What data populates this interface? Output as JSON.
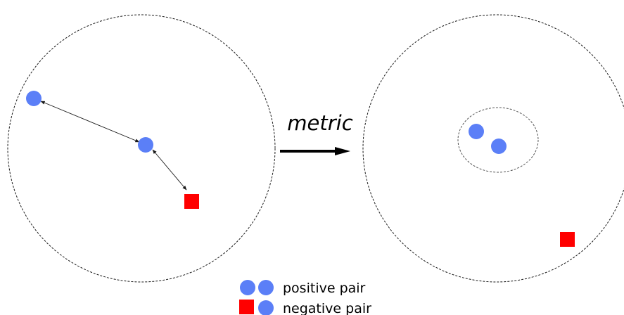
{
  "transform": {
    "label": "metric"
  },
  "colors": {
    "positive_point": "#5b7ff7",
    "negative_point": "#ff0000"
  },
  "legend": {
    "positive": {
      "label": "positive pair",
      "icons": [
        "circle-icon",
        "circle-icon"
      ]
    },
    "negative": {
      "label": "negative pair",
      "icons": [
        "square-icon",
        "circle-icon"
      ]
    }
  }
}
